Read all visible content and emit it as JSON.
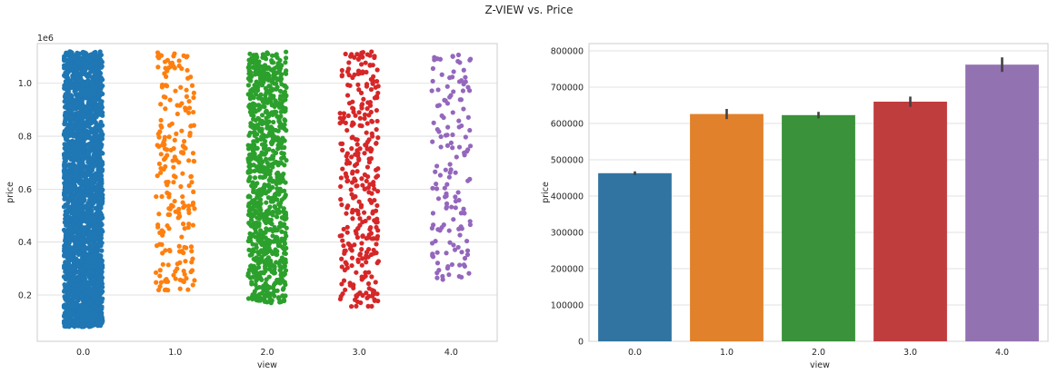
{
  "figure": {
    "suptitle": "Z-VIEW vs. Price"
  },
  "chart_data": [
    {
      "type": "scatter",
      "subtype": "stripplot",
      "xlabel": "view",
      "ylabel": "price",
      "y_offset_label": "1e6",
      "categories": [
        "0.0",
        "1.0",
        "2.0",
        "3.0",
        "4.0"
      ],
      "y_ticks": [
        "0.2",
        "0.4",
        "0.6",
        "0.8",
        "1.0"
      ],
      "y_tick_values": [
        200000,
        400000,
        600000,
        800000,
        1000000
      ],
      "ylim": [
        25000,
        1150000
      ],
      "grid": true,
      "series": [
        {
          "category": "0.0",
          "color": "#1f77b4",
          "y_min": 80000,
          "y_max": 1120000
        },
        {
          "category": "1.0",
          "color": "#ff7f0e",
          "y_min": 215000,
          "y_max": 1120000
        },
        {
          "category": "2.0",
          "color": "#2ca02c",
          "y_min": 170000,
          "y_max": 1120000
        },
        {
          "category": "3.0",
          "color": "#d62728",
          "y_min": 155000,
          "y_max": 1120000
        },
        {
          "category": "4.0",
          "color": "#9467bd",
          "y_min": 250000,
          "y_max": 1110000
        }
      ]
    },
    {
      "type": "bar",
      "xlabel": "view",
      "ylabel": "price",
      "categories": [
        "0.0",
        "1.0",
        "2.0",
        "3.0",
        "4.0"
      ],
      "values": [
        463000,
        626000,
        623000,
        660000,
        762000
      ],
      "error_low": [
        458000,
        612000,
        614000,
        646000,
        742000
      ],
      "error_high": [
        468000,
        640000,
        632000,
        674000,
        782000
      ],
      "colors": [
        "#3274a1",
        "#e1812c",
        "#3a923a",
        "#c03d3e",
        "#9372b2"
      ],
      "y_ticks": [
        "0",
        "100000",
        "200000",
        "300000",
        "400000",
        "500000",
        "600000",
        "700000",
        "800000"
      ],
      "y_tick_values": [
        0,
        100000,
        200000,
        300000,
        400000,
        500000,
        600000,
        700000,
        800000
      ],
      "ylim": [
        0,
        820000
      ],
      "grid": true
    }
  ]
}
